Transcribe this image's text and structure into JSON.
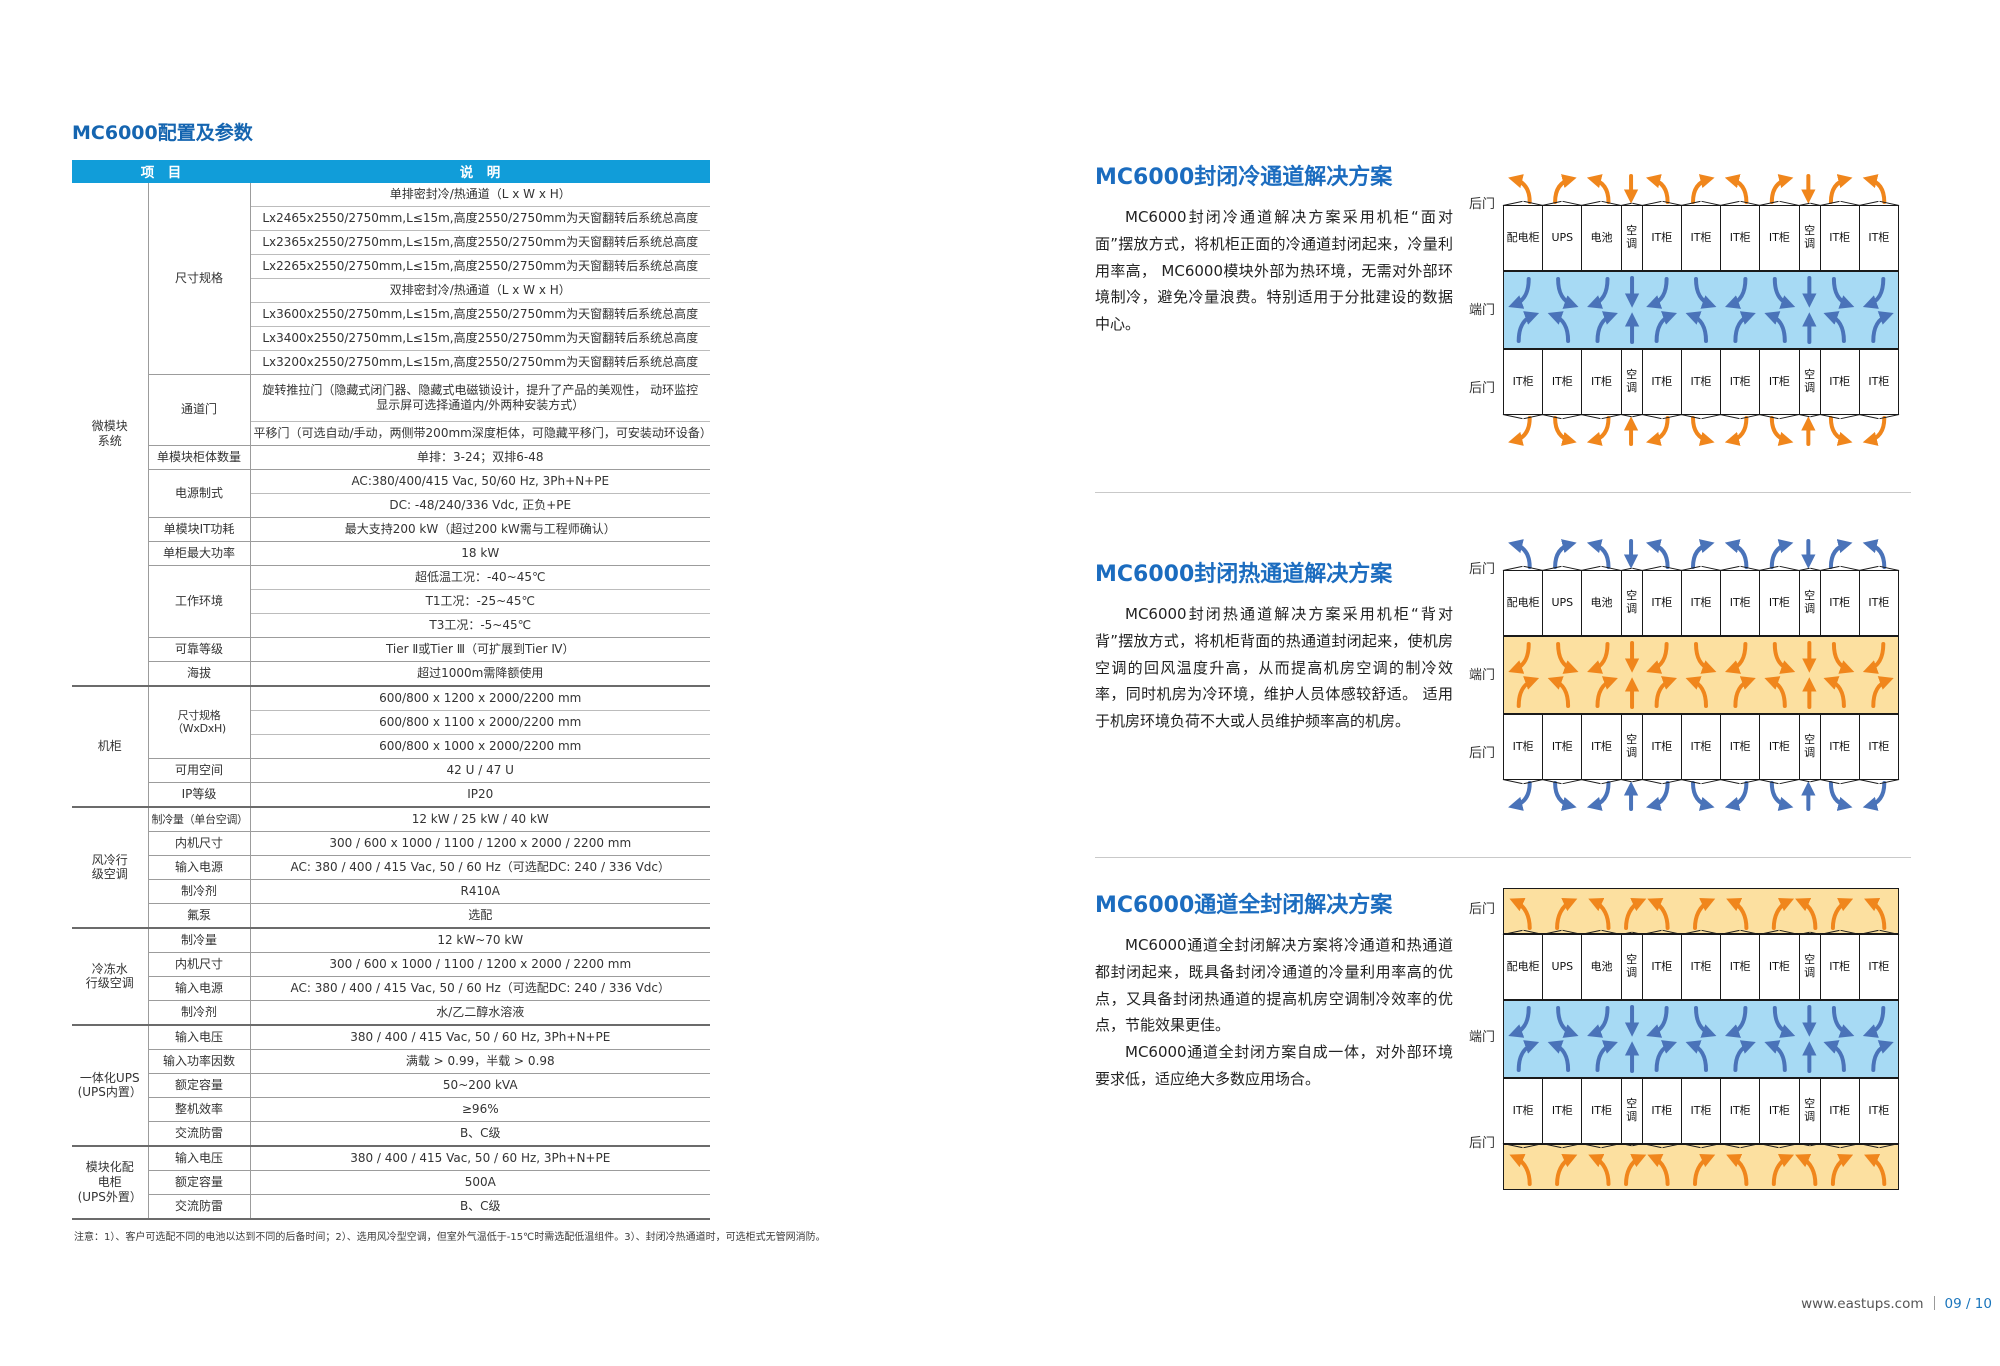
{
  "page_title": "MC6000配置及参数",
  "table": {
    "header": {
      "col_item": "项　目",
      "col_desc": "说　明"
    },
    "groups": [
      {
        "name": "微模块\n系统",
        "items": [
          {
            "label": "尺寸规格",
            "rows": [
              "单排密封冷/热通道（L x W x H）",
              "Lx2465x2550/2750mm,L≤15m,高度2550/2750mm为天窗翻转后系统总高度",
              "Lx2365x2550/2750mm,L≤15m,高度2550/2750mm为天窗翻转后系统总高度",
              "Lx2265x2550/2750mm,L≤15m,高度2550/2750mm为天窗翻转后系统总高度",
              "双排密封冷/热通道（L x W x H）",
              "Lx3600x2550/2750mm,L≤15m,高度2550/2750mm为天窗翻转后系统总高度",
              "Lx3400x2550/2750mm,L≤15m,高度2550/2750mm为天窗翻转后系统总高度",
              "Lx3200x2550/2750mm,L≤15m,高度2550/2750mm为天窗翻转后系统总高度"
            ]
          },
          {
            "label": "通道门",
            "rows": [
              "旋转推拉门（隐藏式闭门器、隐藏式电磁锁设计，提升了产品的美观性， 动环监控\n显示屏可选择通道内/外两种安装方式）",
              "平移门（可选自动/手动，两侧带200mm深度柜体，可隐藏平移门，可安装动环设备）"
            ]
          },
          {
            "label": "单模块柜体数量",
            "rows": [
              "单排：3-24；双排6-48"
            ]
          },
          {
            "label": "电源制式",
            "rows": [
              "AC:380/400/415 Vac, 50/60 Hz, 3Ph+N+PE",
              "DC: -48/240/336 Vdc, 正负+PE"
            ]
          },
          {
            "label": "单模块IT功耗",
            "rows": [
              "最大支持200 kW（超过200 kW需与工程师确认）"
            ]
          },
          {
            "label": "单柜最大功率",
            "rows": [
              "18 kW"
            ]
          },
          {
            "label": "工作环境",
            "rows": [
              "超低温工况：-40~45℃",
              "T1工况：-25~45℃",
              "T3工况：-5~45℃"
            ]
          },
          {
            "label": "可靠等级",
            "rows": [
              "Tier Ⅱ或Tier Ⅲ（可扩展到Tier Ⅳ）"
            ]
          },
          {
            "label": "海拔",
            "rows": [
              "超过1000m需降额使用"
            ]
          }
        ]
      },
      {
        "name": "机柜",
        "items": [
          {
            "label": "尺寸规格\n（WxDxH)",
            "rows": [
              "600/800 x 1200 x 2000/2200 mm",
              "600/800 x 1100 x 2000/2200 mm",
              "600/800 x 1000 x 2000/2200 mm"
            ]
          },
          {
            "label": "可用空间",
            "rows": [
              "42 U / 47 U"
            ]
          },
          {
            "label": "IP等级",
            "rows": [
              "IP20"
            ]
          }
        ]
      },
      {
        "name": "风冷行\n级空调",
        "items": [
          {
            "label": "制冷量（单台空调）",
            "rows": [
              "12 kW / 25 kW / 40 kW"
            ]
          },
          {
            "label": "内机尺寸",
            "rows": [
              "300 / 600 x 1000 / 1100 / 1200 x 2000 / 2200 mm"
            ]
          },
          {
            "label": "输入电源",
            "rows": [
              "AC: 380 / 400 / 415 Vac, 50 / 60 Hz（可选配DC: 240 / 336 Vdc）"
            ]
          },
          {
            "label": "制冷剂",
            "rows": [
              "R410A"
            ]
          },
          {
            "label": "氟泵",
            "rows": [
              "选配"
            ]
          }
        ]
      },
      {
        "name": "冷冻水\n行级空调",
        "items": [
          {
            "label": "制冷量",
            "rows": [
              "12 kW~70 kW"
            ]
          },
          {
            "label": "内机尺寸",
            "rows": [
              "300 / 600 x 1000 / 1100 / 1200 x 2000 / 2200 mm"
            ]
          },
          {
            "label": "输入电源",
            "rows": [
              "AC: 380 / 400 / 415 Vac, 50 / 60 Hz（可选配DC: 240 / 336 Vdc）"
            ]
          },
          {
            "label": "制冷剂",
            "rows": [
              "水/乙二醇水溶液"
            ]
          }
        ]
      },
      {
        "name": "一体化UPS\n(UPS内置）",
        "items": [
          {
            "label": "输入电压",
            "rows": [
              "380 / 400 / 415 Vac, 50 / 60 Hz, 3Ph+N+PE"
            ]
          },
          {
            "label": "输入功率因数",
            "rows": [
              "满载 > 0.99，半载 > 0.98"
            ]
          },
          {
            "label": "额定容量",
            "rows": [
              "50~200 kVA"
            ]
          },
          {
            "label": "整机效率",
            "rows": [
              "≥96%"
            ]
          },
          {
            "label": "交流防雷",
            "rows": [
              "B、C级"
            ]
          }
        ]
      },
      {
        "name": "模块化配\n电柜\n(UPS外置）",
        "items": [
          {
            "label": "输入电压",
            "rows": [
              "380 / 400 / 415 Vac, 50 / 60 Hz, 3Ph+N+PE"
            ]
          },
          {
            "label": "额定容量",
            "rows": [
              "500A"
            ]
          },
          {
            "label": "交流防雷",
            "rows": [
              "B、C级"
            ]
          }
        ]
      }
    ],
    "note": "注意：1）、客户可选配不同的电池以达到不同的后备时间；2）、选用风冷型空调，但室外气温低于-15℃时需选配低温组件。3）、封闭冷热通道时，可选柜式无管网消防。"
  },
  "sections": [
    {
      "title": "MC6000封闭冷通道解决方案",
      "paragraphs": [
        "MC6000封闭冷通道解决方案采用机柜“面对面”摆放方式，将机柜正面的冷通道封闭起来，冷量利用率高， MC6000模块外部为热环境，无需对外部环境制冷，避免冷量浪费。特别适用于分批建设的数据中心。"
      ],
      "diagram": {
        "type": "cold-aisle",
        "door_labels": [
          "后门",
          "端门",
          "后门"
        ],
        "top_cabinets": [
          "配电柜",
          "UPS",
          "电池",
          "空调",
          "IT柜",
          "IT柜",
          "IT柜",
          "IT柜",
          "空调",
          "IT柜",
          "IT柜"
        ],
        "bottom_cabinets": [
          "IT柜",
          "IT柜",
          "IT柜",
          "空调",
          "IT柜",
          "IT柜",
          "IT柜",
          "IT柜",
          "空调",
          "IT柜",
          "IT柜"
        ]
      }
    },
    {
      "title": "MC6000封闭热通道解决方案",
      "paragraphs": [
        "MC6000封闭热通道解决方案采用机柜“背对背”摆放方式，将机柜背面的热通道封闭起来，使机房空调的回风温度升高，从而提高机房空调的制冷效率，同时机房为冷环境，维护人员体感较舒适。 适用于机房环境负荷不大或人员维护频率高的机房。"
      ],
      "diagram": {
        "type": "hot-aisle",
        "door_labels": [
          "后门",
          "端门",
          "后门"
        ],
        "top_cabinets": [
          "配电柜",
          "UPS",
          "电池",
          "空调",
          "IT柜",
          "IT柜",
          "IT柜",
          "IT柜",
          "空调",
          "IT柜",
          "IT柜"
        ],
        "bottom_cabinets": [
          "IT柜",
          "IT柜",
          "IT柜",
          "空调",
          "IT柜",
          "IT柜",
          "IT柜",
          "IT柜",
          "空调",
          "IT柜",
          "IT柜"
        ]
      }
    },
    {
      "title": "MC6000通道全封闭解决方案",
      "paragraphs": [
        "MC6000通道全封闭解决方案将冷通道和热通道都封闭起来，既具备封闭冷通道的冷量利用率高的优点，又具备封闭热通道的提高机房空调制冷效率的优点，节能效果更佳。",
        "MC6000通道全封闭方案自成一体，对外部环境要求低，适应绝大多数应用场合。"
      ],
      "diagram": {
        "type": "full-enclosed",
        "door_labels": [
          "后门",
          "端门",
          "后门"
        ],
        "top_cabinets": [
          "配电柜",
          "UPS",
          "电池",
          "空调",
          "IT柜",
          "IT柜",
          "IT柜",
          "IT柜",
          "空调",
          "IT柜",
          "IT柜"
        ],
        "bottom_cabinets": [
          "IT柜",
          "IT柜",
          "IT柜",
          "空调",
          "IT柜",
          "IT柜",
          "IT柜",
          "IT柜",
          "空调",
          "IT柜",
          "IT柜"
        ]
      }
    }
  ],
  "footer": {
    "url": "www.eastups.com",
    "page_no": "09 / 10"
  },
  "colors": {
    "table_header_bg": "#119dd9",
    "title_blue": "#1565b0",
    "section_title_blue": "#1b6cbf",
    "cold_band": "#a7daf4",
    "hot_band": "#fce0a0",
    "cold_arrow": "#4a73b9",
    "hot_arrow": "#f0861c",
    "page_no_blue": "#1a75bc"
  }
}
